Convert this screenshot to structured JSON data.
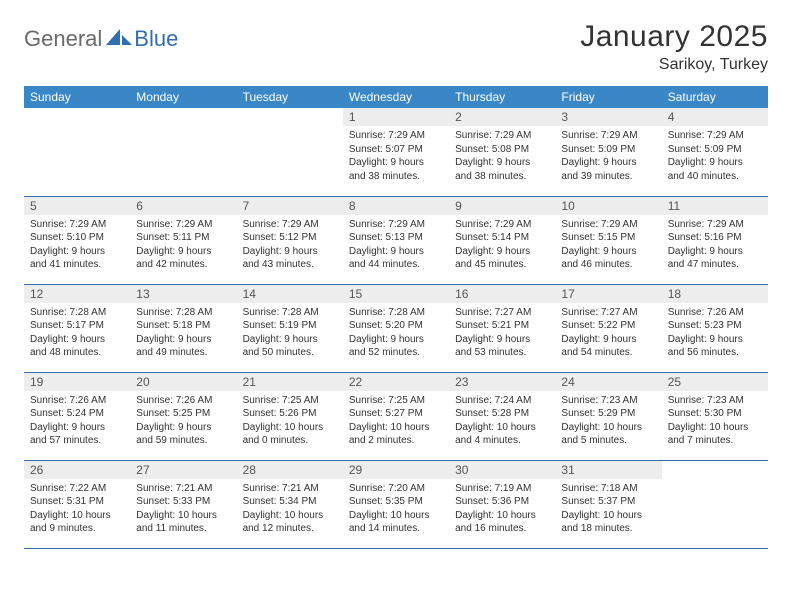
{
  "brand": {
    "left": "General",
    "right": "Blue"
  },
  "title": "January 2025",
  "location": "Sarikoy, Turkey",
  "colors": {
    "header_bg": "#3a87c8",
    "header_text": "#ffffff",
    "rule": "#2f6faf",
    "daynum_bg": "#ededed",
    "body_text": "#333333",
    "logo_gray": "#6a6a6a",
    "logo_blue": "#2f6faf",
    "page_bg": "#ffffff"
  },
  "fonts": {
    "title_size_pt": 22,
    "location_size_pt": 12,
    "weekday_size_pt": 9,
    "daynum_size_pt": 9,
    "body_size_pt": 7.5
  },
  "weekdays": [
    "Sunday",
    "Monday",
    "Tuesday",
    "Wednesday",
    "Thursday",
    "Friday",
    "Saturday"
  ],
  "first_weekday_index": 3,
  "days": [
    {
      "n": 1,
      "sunrise": "7:29 AM",
      "sunset": "5:07 PM",
      "dl_h": 9,
      "dl_m": 38
    },
    {
      "n": 2,
      "sunrise": "7:29 AM",
      "sunset": "5:08 PM",
      "dl_h": 9,
      "dl_m": 38
    },
    {
      "n": 3,
      "sunrise": "7:29 AM",
      "sunset": "5:09 PM",
      "dl_h": 9,
      "dl_m": 39
    },
    {
      "n": 4,
      "sunrise": "7:29 AM",
      "sunset": "5:09 PM",
      "dl_h": 9,
      "dl_m": 40
    },
    {
      "n": 5,
      "sunrise": "7:29 AM",
      "sunset": "5:10 PM",
      "dl_h": 9,
      "dl_m": 41
    },
    {
      "n": 6,
      "sunrise": "7:29 AM",
      "sunset": "5:11 PM",
      "dl_h": 9,
      "dl_m": 42
    },
    {
      "n": 7,
      "sunrise": "7:29 AM",
      "sunset": "5:12 PM",
      "dl_h": 9,
      "dl_m": 43
    },
    {
      "n": 8,
      "sunrise": "7:29 AM",
      "sunset": "5:13 PM",
      "dl_h": 9,
      "dl_m": 44
    },
    {
      "n": 9,
      "sunrise": "7:29 AM",
      "sunset": "5:14 PM",
      "dl_h": 9,
      "dl_m": 45
    },
    {
      "n": 10,
      "sunrise": "7:29 AM",
      "sunset": "5:15 PM",
      "dl_h": 9,
      "dl_m": 46
    },
    {
      "n": 11,
      "sunrise": "7:29 AM",
      "sunset": "5:16 PM",
      "dl_h": 9,
      "dl_m": 47
    },
    {
      "n": 12,
      "sunrise": "7:28 AM",
      "sunset": "5:17 PM",
      "dl_h": 9,
      "dl_m": 48
    },
    {
      "n": 13,
      "sunrise": "7:28 AM",
      "sunset": "5:18 PM",
      "dl_h": 9,
      "dl_m": 49
    },
    {
      "n": 14,
      "sunrise": "7:28 AM",
      "sunset": "5:19 PM",
      "dl_h": 9,
      "dl_m": 50
    },
    {
      "n": 15,
      "sunrise": "7:28 AM",
      "sunset": "5:20 PM",
      "dl_h": 9,
      "dl_m": 52
    },
    {
      "n": 16,
      "sunrise": "7:27 AM",
      "sunset": "5:21 PM",
      "dl_h": 9,
      "dl_m": 53
    },
    {
      "n": 17,
      "sunrise": "7:27 AM",
      "sunset": "5:22 PM",
      "dl_h": 9,
      "dl_m": 54
    },
    {
      "n": 18,
      "sunrise": "7:26 AM",
      "sunset": "5:23 PM",
      "dl_h": 9,
      "dl_m": 56
    },
    {
      "n": 19,
      "sunrise": "7:26 AM",
      "sunset": "5:24 PM",
      "dl_h": 9,
      "dl_m": 57
    },
    {
      "n": 20,
      "sunrise": "7:26 AM",
      "sunset": "5:25 PM",
      "dl_h": 9,
      "dl_m": 59
    },
    {
      "n": 21,
      "sunrise": "7:25 AM",
      "sunset": "5:26 PM",
      "dl_h": 10,
      "dl_m": 0
    },
    {
      "n": 22,
      "sunrise": "7:25 AM",
      "sunset": "5:27 PM",
      "dl_h": 10,
      "dl_m": 2
    },
    {
      "n": 23,
      "sunrise": "7:24 AM",
      "sunset": "5:28 PM",
      "dl_h": 10,
      "dl_m": 4
    },
    {
      "n": 24,
      "sunrise": "7:23 AM",
      "sunset": "5:29 PM",
      "dl_h": 10,
      "dl_m": 5
    },
    {
      "n": 25,
      "sunrise": "7:23 AM",
      "sunset": "5:30 PM",
      "dl_h": 10,
      "dl_m": 7
    },
    {
      "n": 26,
      "sunrise": "7:22 AM",
      "sunset": "5:31 PM",
      "dl_h": 10,
      "dl_m": 9
    },
    {
      "n": 27,
      "sunrise": "7:21 AM",
      "sunset": "5:33 PM",
      "dl_h": 10,
      "dl_m": 11
    },
    {
      "n": 28,
      "sunrise": "7:21 AM",
      "sunset": "5:34 PM",
      "dl_h": 10,
      "dl_m": 12
    },
    {
      "n": 29,
      "sunrise": "7:20 AM",
      "sunset": "5:35 PM",
      "dl_h": 10,
      "dl_m": 14
    },
    {
      "n": 30,
      "sunrise": "7:19 AM",
      "sunset": "5:36 PM",
      "dl_h": 10,
      "dl_m": 16
    },
    {
      "n": 31,
      "sunrise": "7:18 AM",
      "sunset": "5:37 PM",
      "dl_h": 10,
      "dl_m": 18
    }
  ]
}
